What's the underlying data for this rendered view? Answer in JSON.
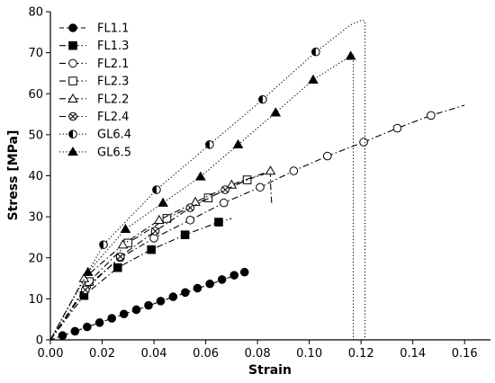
{
  "chart_data": {
    "type": "line",
    "title": "",
    "xlabel": "Strain",
    "ylabel": "Stress [MPa]",
    "xlim": [
      0,
      0.17
    ],
    "ylim": [
      0,
      80
    ],
    "x_ticks": [
      0.0,
      0.02,
      0.04,
      0.06,
      0.08,
      0.1,
      0.12,
      0.14,
      0.16
    ],
    "x_tick_labels": [
      "0.00",
      "0.02",
      "0.04",
      "0.06",
      "0.08",
      "0.10",
      "0.12",
      "0.14",
      "0.16"
    ],
    "y_ticks": [
      0,
      10,
      20,
      30,
      40,
      50,
      60,
      70,
      80
    ],
    "y_tick_labels": [
      "0",
      "10",
      "20",
      "30",
      "40",
      "50",
      "60",
      "70",
      "80"
    ],
    "grid": false,
    "legend_position": "top-left",
    "series": [
      {
        "name": "FL1.1",
        "line": "dashed",
        "marker": "circle-filled",
        "x": [
          0,
          0.075
        ],
        "y": [
          0,
          16.5
        ],
        "marker_x": [
          0.0047,
          0.0095,
          0.0142,
          0.019,
          0.0237,
          0.0284,
          0.0332,
          0.0379,
          0.0426,
          0.0474,
          0.0521,
          0.0568,
          0.0616,
          0.0663,
          0.071,
          0.075
        ],
        "marker_y": [
          1.05,
          2.1,
          3.15,
          4.2,
          5.25,
          6.3,
          7.35,
          8.4,
          9.45,
          10.5,
          11.55,
          12.6,
          13.65,
          14.7,
          15.75,
          16.5
        ]
      },
      {
        "name": "FL1.3",
        "line": "dashdot",
        "marker": "square-filled",
        "x": [
          0,
          0.013,
          0.026,
          0.039,
          0.052,
          0.065,
          0.07
        ],
        "y": [
          0,
          10.8,
          17.6,
          22.0,
          25.6,
          28.7,
          29.6
        ],
        "marker_x": [
          0.013,
          0.026,
          0.039,
          0.052,
          0.065
        ],
        "marker_y": [
          10.8,
          17.6,
          22.0,
          25.6,
          28.7
        ]
      },
      {
        "name": "FL2.1",
        "line": "dashdot",
        "marker": "circle-open",
        "x": [
          0,
          0.014,
          0.027,
          0.04,
          0.054,
          0.067,
          0.081,
          0.094,
          0.107,
          0.121,
          0.134,
          0.147,
          0.16
        ],
        "y": [
          0,
          13,
          20,
          24.8,
          29.2,
          33.4,
          37.2,
          41.2,
          44.8,
          48.2,
          51.6,
          54.7,
          57.2
        ],
        "marker_x": [
          0.014,
          0.027,
          0.04,
          0.054,
          0.067,
          0.081,
          0.094,
          0.107,
          0.121,
          0.134,
          0.147
        ],
        "marker_y": [
          13,
          20,
          24.8,
          29.2,
          33.4,
          37.2,
          41.2,
          44.8,
          48.2,
          51.6,
          54.7
        ]
      },
      {
        "name": "FL2.3",
        "line": "dashdot",
        "marker": "square-open",
        "x": [
          0,
          0.015,
          0.03,
          0.045,
          0.061,
          0.076,
          0.083
        ],
        "y": [
          0,
          14.2,
          23.6,
          29.6,
          34.6,
          39.0,
          40.5
        ],
        "marker_x": [
          0.015,
          0.03,
          0.045,
          0.061,
          0.076
        ],
        "marker_y": [
          14.2,
          23.6,
          29.6,
          34.6,
          39.0
        ]
      },
      {
        "name": "FL2.2",
        "line": "dashdot",
        "marker": "triangle-open",
        "x": [
          0,
          0.013,
          0.028,
          0.042,
          0.056,
          0.07,
          0.085,
          0.085,
          0.0855
        ],
        "y": [
          0,
          15,
          23.2,
          29.2,
          33.6,
          37.8,
          41.2,
          38.4,
          33
        ],
        "marker_x": [
          0.013,
          0.028,
          0.042,
          0.056,
          0.07,
          0.085
        ],
        "marker_y": [
          15,
          23.2,
          29.2,
          33.6,
          37.8,
          41.2
        ]
      },
      {
        "name": "FL2.4",
        "line": "dashdot",
        "marker": "circle-x",
        "x": [
          0,
          0.0135,
          0.027,
          0.0405,
          0.054,
          0.0675,
          0.078
        ],
        "y": [
          0,
          12.2,
          20.3,
          26.5,
          32.2,
          36.6,
          39.6
        ],
        "marker_x": [
          0.0135,
          0.027,
          0.0405,
          0.054,
          0.0675
        ],
        "marker_y": [
          12.2,
          20.3,
          26.5,
          32.2,
          36.6
        ]
      },
      {
        "name": "GL6.4",
        "line": "dotted",
        "marker": "circle-half",
        "x": [
          0,
          0.0205,
          0.041,
          0.0615,
          0.082,
          0.1025,
          0.116,
          0.1205,
          0.1215,
          0.1215
        ],
        "y": [
          0,
          23.2,
          36.6,
          47.6,
          58.6,
          70.2,
          76.8,
          78.0,
          77.6,
          0
        ],
        "marker_x": [
          0.0205,
          0.041,
          0.0615,
          0.082,
          0.1025
        ],
        "marker_y": [
          23.2,
          36.6,
          47.6,
          58.6,
          70.2
        ]
      },
      {
        "name": "GL6.5",
        "line": "dotted",
        "marker": "triangle-filled",
        "x": [
          0,
          0.0145,
          0.029,
          0.0435,
          0.058,
          0.0725,
          0.087,
          0.1015,
          0.116,
          0.117,
          0.117
        ],
        "y": [
          0,
          16.5,
          27,
          33.4,
          39.8,
          47.6,
          55.4,
          63.4,
          69.2,
          69.4,
          0
        ],
        "marker_x": [
          0.0145,
          0.029,
          0.0435,
          0.058,
          0.0725,
          0.087,
          0.1015,
          0.116
        ],
        "marker_y": [
          16.5,
          27,
          33.4,
          39.8,
          47.6,
          55.4,
          63.4,
          69.2
        ]
      }
    ]
  }
}
